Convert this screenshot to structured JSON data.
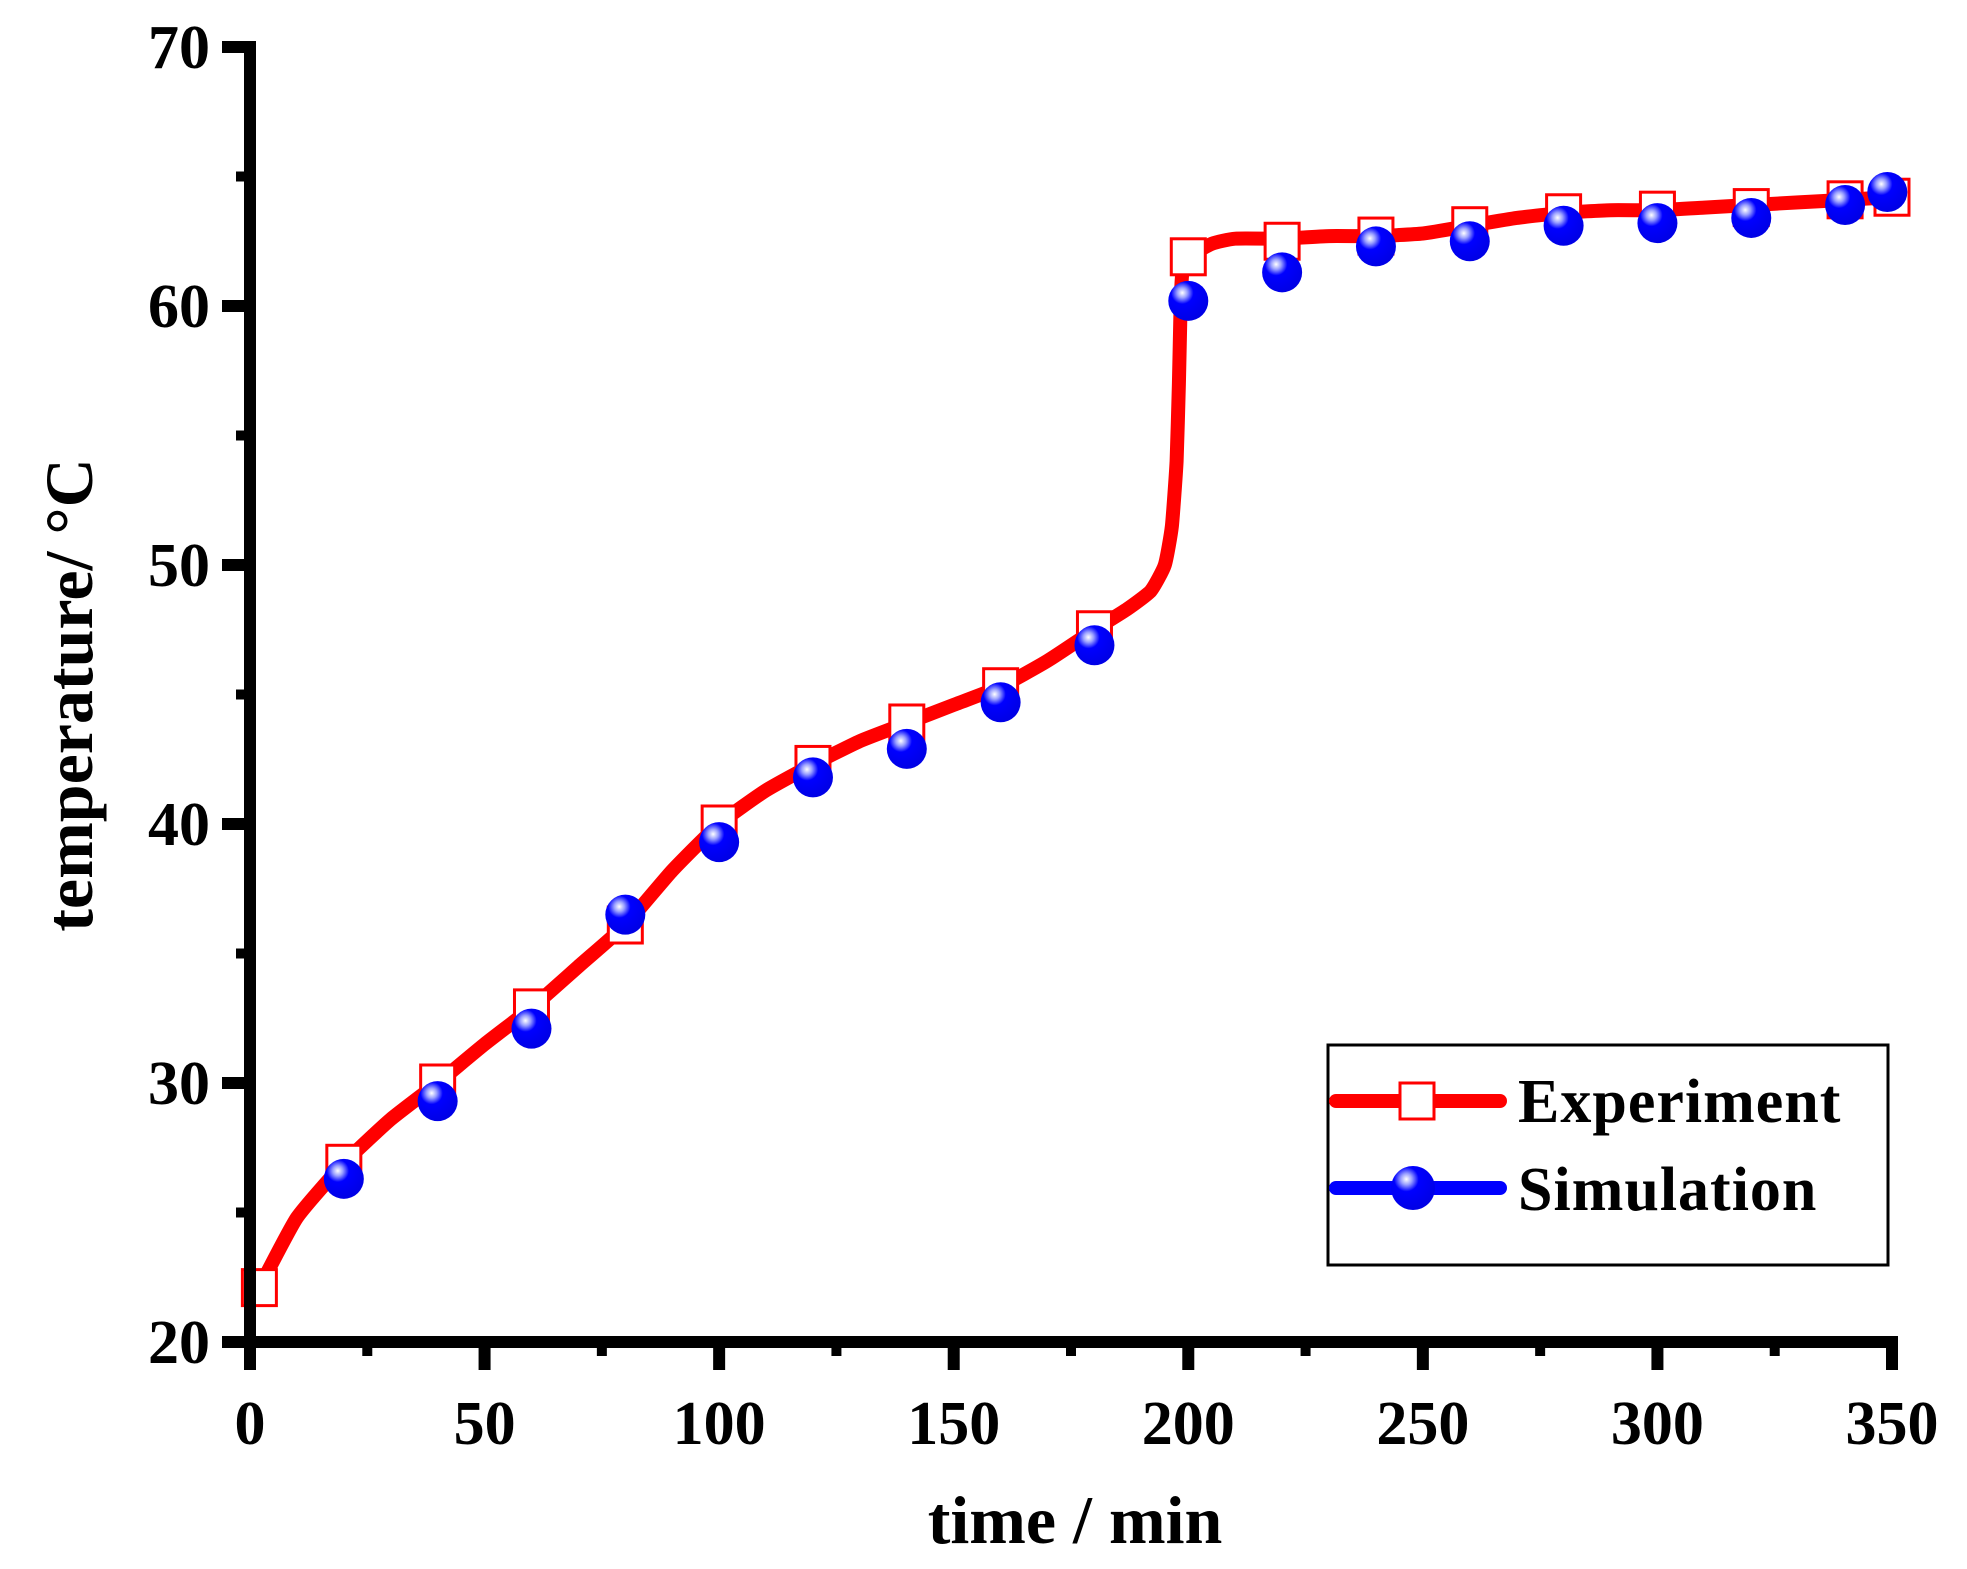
{
  "chart_data": {
    "type": "line",
    "title": "",
    "xlabel": "time / min",
    "ylabel": "temperature/ °C",
    "xlim": [
      0,
      350
    ],
    "ylim": [
      20,
      70
    ],
    "xticks": [
      0,
      50,
      100,
      150,
      200,
      250,
      300,
      350
    ],
    "xtick_labels": [
      "0",
      "50",
      "100",
      "150",
      "200",
      "250",
      "300",
      "350"
    ],
    "xminor": [
      25,
      75,
      125,
      175,
      225,
      275,
      325
    ],
    "yticks": [
      20,
      30,
      40,
      50,
      60,
      70
    ],
    "ytick_labels": [
      "20",
      "30",
      "40",
      "50",
      "60",
      "70"
    ],
    "yminor": [
      25,
      35,
      45,
      55,
      65
    ],
    "grid": false,
    "legend_position": "bottom-right",
    "series": [
      {
        "name": "Experiment",
        "color": "#ff0000",
        "marker": "open-square",
        "x": [
          2,
          20,
          40,
          60,
          80,
          100,
          120,
          140,
          160,
          180,
          200,
          220,
          240,
          260,
          280,
          300,
          320,
          340,
          350
        ],
        "y": [
          22.1,
          26.9,
          30.0,
          32.9,
          36.1,
          40.0,
          42.3,
          43.9,
          45.3,
          47.5,
          61.9,
          62.5,
          62.7,
          63.1,
          63.6,
          63.7,
          63.8,
          64.1,
          64.2
        ],
        "curve": {
          "x": [
            2,
            10,
            20,
            30,
            40,
            50,
            60,
            70,
            80,
            90,
            100,
            110,
            120,
            130,
            140,
            150,
            160,
            170,
            180,
            187,
            192,
            195,
            196.5,
            197.5,
            198,
            198.3,
            198.6,
            199,
            200,
            205,
            210,
            220,
            230,
            240,
            250,
            260,
            270,
            280,
            290,
            300,
            310,
            320,
            330,
            340,
            350
          ],
          "y": [
            22.1,
            24.8,
            26.9,
            28.6,
            30.0,
            31.5,
            32.9,
            34.5,
            36.1,
            38.2,
            40.0,
            41.3,
            42.3,
            43.2,
            43.9,
            44.6,
            45.3,
            46.3,
            47.5,
            48.3,
            49.0,
            50.0,
            51.5,
            54.0,
            57.0,
            59.5,
            61.0,
            61.6,
            61.9,
            62.4,
            62.6,
            62.6,
            62.7,
            62.7,
            62.8,
            63.1,
            63.4,
            63.6,
            63.7,
            63.7,
            63.8,
            63.9,
            64.0,
            64.1,
            64.2
          ]
        }
      },
      {
        "name": "Simulation",
        "color": "#0000ff",
        "marker": "filled-sphere",
        "x": [
          20,
          40,
          60,
          80,
          100,
          120,
          140,
          160,
          180,
          200,
          220,
          240,
          260,
          280,
          300,
          320,
          340,
          349
        ],
        "y": [
          26.3,
          29.3,
          32.1,
          36.5,
          39.3,
          41.8,
          42.9,
          44.7,
          46.9,
          60.2,
          61.3,
          62.3,
          62.5,
          63.1,
          63.2,
          63.4,
          63.9,
          64.4
        ]
      }
    ]
  }
}
